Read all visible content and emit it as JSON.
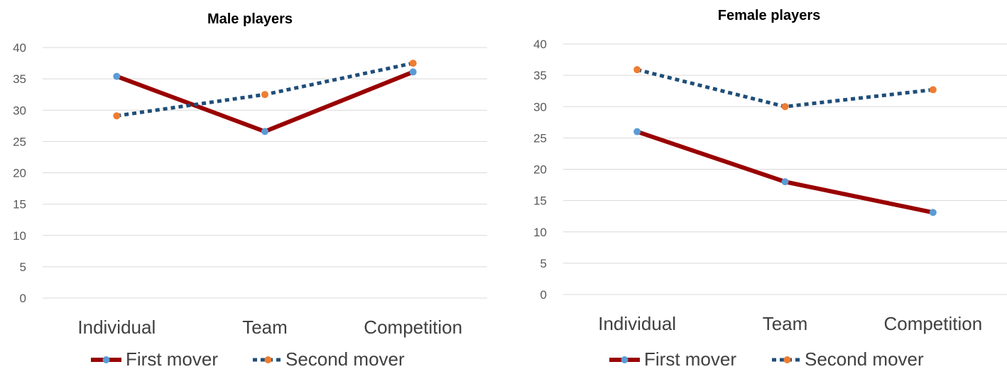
{
  "chart_data": [
    {
      "type": "line",
      "title": "Male players",
      "categories": [
        "Individual",
        "Team",
        "Competition"
      ],
      "ylim": [
        0,
        40
      ],
      "yticks": [
        0,
        5,
        10,
        15,
        20,
        25,
        30,
        35,
        40
      ],
      "grid": true,
      "legend_position": "bottom",
      "series": [
        {
          "name": "First mover",
          "values": [
            35.4,
            26.6,
            36.1
          ],
          "line_color": "#990000",
          "marker_color": "#5B9BD5",
          "style": "solid"
        },
        {
          "name": "Second mover",
          "values": [
            29.1,
            32.5,
            37.5
          ],
          "line_color": "#1F4E79",
          "marker_color": "#ED7D31",
          "style": "dotted"
        }
      ]
    },
    {
      "type": "line",
      "title": "Female players",
      "categories": [
        "Individual",
        "Team",
        "Competition"
      ],
      "ylim": [
        0,
        40
      ],
      "yticks": [
        0,
        5,
        10,
        15,
        20,
        25,
        30,
        35,
        40
      ],
      "grid": true,
      "legend_position": "bottom",
      "series": [
        {
          "name": "First mover",
          "values": [
            26.0,
            18.0,
            13.1
          ],
          "line_color": "#990000",
          "marker_color": "#5B9BD5",
          "style": "solid"
        },
        {
          "name": "Second mover",
          "values": [
            35.9,
            30.0,
            32.7
          ],
          "line_color": "#1F4E79",
          "marker_color": "#ED7D31",
          "style": "dotted"
        }
      ]
    }
  ]
}
